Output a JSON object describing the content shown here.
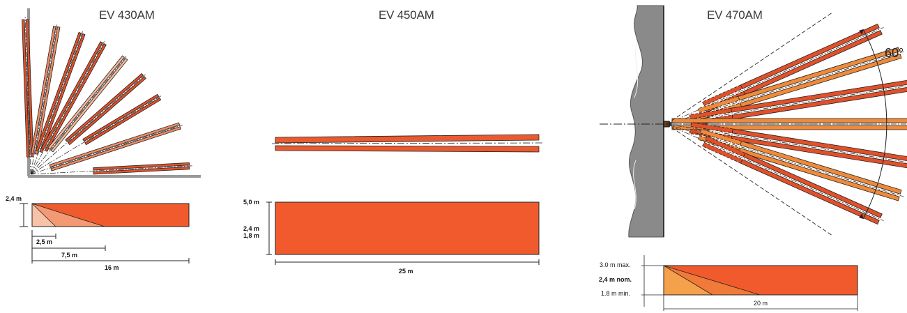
{
  "panels": [
    {
      "model": "EV 430AM",
      "height_label": "2,4 m",
      "distances": [
        "2,5 m",
        "7,5 m",
        "16 m"
      ]
    },
    {
      "model": "EV 450AM",
      "height_labels": [
        "5,0 m",
        "2,4 m",
        "1,8 m"
      ],
      "distance": "25 m"
    },
    {
      "model": "EV 470AM",
      "angle": "60°",
      "height_labels": [
        "3.0 m max.",
        "2,4 m nom.",
        "1.8 m min."
      ],
      "distance": "20 m"
    }
  ],
  "colors": {
    "beam_dark": "#e0512a",
    "beam_mid": "#ec8a64",
    "beam_light": "#f6b898",
    "beam_orange": "#ef8a3a",
    "zone_main": "#f15a2c",
    "zone_mid": "#f39a74",
    "zone_light": "#f7c2a8",
    "zone_470_light": "#f5a04a",
    "zone_470_mid": "#f17a38",
    "wall": "#8a8a8a"
  }
}
